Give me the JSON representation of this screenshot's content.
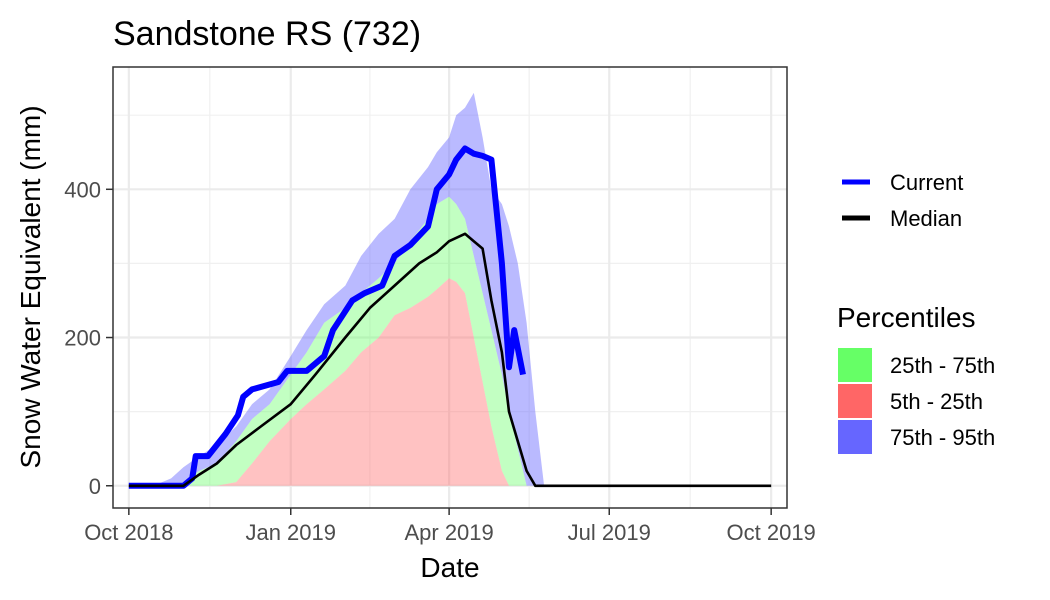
{
  "chart_data": {
    "type": "area",
    "title": "Sandstone RS (732)",
    "xlabel": "Date",
    "ylabel": "Snow Water Equivalent (mm)",
    "x_range": [
      "2018-09-22",
      "2019-10-10"
    ],
    "ylim": [
      -30,
      565
    ],
    "x_ticks": [
      {
        "date": "2018-10-01",
        "label": "Oct 2018"
      },
      {
        "date": "2019-01-01",
        "label": "Jan 2019"
      },
      {
        "date": "2019-04-01",
        "label": "Apr 2019"
      },
      {
        "date": "2019-07-01",
        "label": "Jul 2019"
      },
      {
        "date": "2019-10-01",
        "label": "Oct 2019"
      }
    ],
    "y_ticks": [
      0,
      200,
      400
    ],
    "grid": true,
    "legend_position": "right",
    "colors": {
      "current": "#0000ff",
      "median": "#000000",
      "p25_75": "#66ff66",
      "p5_25": "#ff6666",
      "p75_95": "#6666ff"
    },
    "legend": {
      "lines": [
        {
          "label": "Current",
          "color": "#0000ff"
        },
        {
          "label": "Median",
          "color": "#000000"
        }
      ],
      "fills_title": "Percentiles",
      "fills": [
        {
          "label": "25th - 75th",
          "color": "#66ff66"
        },
        {
          "label": "5th - 25th",
          "color": "#ff6666"
        },
        {
          "label": "75th - 95th",
          "color": "#6666ff"
        }
      ]
    },
    "bands": {
      "x": [
        "2018-10-01",
        "2018-10-15",
        "2018-10-25",
        "2018-11-01",
        "2018-11-10",
        "2018-11-20",
        "2018-12-01",
        "2018-12-10",
        "2018-12-20",
        "2019-01-01",
        "2019-01-10",
        "2019-01-20",
        "2019-02-01",
        "2019-02-10",
        "2019-02-20",
        "2019-03-01",
        "2019-03-10",
        "2019-03-20",
        "2019-03-25",
        "2019-04-01",
        "2019-04-05",
        "2019-04-10",
        "2019-04-15",
        "2019-04-20",
        "2019-04-25",
        "2019-05-01",
        "2019-05-05",
        "2019-05-10",
        "2019-05-15",
        "2019-05-20",
        "2019-05-25",
        "2019-05-31",
        "2019-06-05"
      ],
      "p5": [
        0,
        0,
        0,
        0,
        0,
        0,
        0,
        0,
        0,
        0,
        0,
        0,
        0,
        0,
        0,
        0,
        0,
        0,
        0,
        0,
        0,
        0,
        0,
        0,
        0,
        0,
        0,
        0,
        0,
        0,
        0,
        0,
        0
      ],
      "p25": [
        0,
        0,
        0,
        0,
        0,
        0,
        5,
        30,
        60,
        90,
        110,
        130,
        155,
        180,
        200,
        230,
        240,
        255,
        265,
        280,
        275,
        260,
        200,
        140,
        80,
        20,
        0,
        0,
        0,
        0,
        0,
        0,
        0
      ],
      "p75": [
        0,
        0,
        0,
        5,
        20,
        30,
        60,
        90,
        110,
        150,
        180,
        220,
        240,
        260,
        280,
        300,
        330,
        360,
        380,
        390,
        380,
        360,
        310,
        260,
        210,
        150,
        100,
        50,
        0,
        0,
        0,
        0,
        0
      ],
      "p95": [
        0,
        0,
        10,
        25,
        40,
        55,
        80,
        110,
        130,
        175,
        210,
        245,
        270,
        310,
        340,
        360,
        400,
        430,
        450,
        470,
        500,
        510,
        530,
        470,
        400,
        380,
        350,
        300,
        220,
        100,
        0,
        0,
        0
      ]
    },
    "series": [
      {
        "name": "Current",
        "x": [
          "2018-10-01",
          "2018-11-01",
          "2018-11-06",
          "2018-11-08",
          "2018-11-15",
          "2018-11-25",
          "2018-12-02",
          "2018-12-05",
          "2018-12-10",
          "2018-12-25",
          "2018-12-30",
          "2019-01-10",
          "2019-01-20",
          "2019-01-25",
          "2019-02-05",
          "2019-02-12",
          "2019-02-22",
          "2019-03-01",
          "2019-03-10",
          "2019-03-20",
          "2019-03-25",
          "2019-04-01",
          "2019-04-05",
          "2019-04-10",
          "2019-04-15",
          "2019-04-20",
          "2019-04-25",
          "2019-05-01",
          "2019-05-05",
          "2019-05-08",
          "2019-05-13"
        ],
        "values": [
          0,
          0,
          10,
          40,
          40,
          70,
          95,
          120,
          130,
          140,
          155,
          155,
          175,
          210,
          250,
          260,
          270,
          310,
          325,
          350,
          400,
          420,
          440,
          455,
          448,
          445,
          440,
          300,
          160,
          210,
          150
        ]
      },
      {
        "name": "Median",
        "x": [
          "2018-10-01",
          "2018-11-01",
          "2018-11-10",
          "2018-11-20",
          "2018-12-01",
          "2018-12-15",
          "2019-01-01",
          "2019-01-15",
          "2019-02-01",
          "2019-02-15",
          "2019-03-01",
          "2019-03-15",
          "2019-03-25",
          "2019-04-01",
          "2019-04-10",
          "2019-04-15",
          "2019-04-20",
          "2019-04-25",
          "2019-05-01",
          "2019-05-05",
          "2019-05-10",
          "2019-05-15",
          "2019-05-20",
          "2019-10-01"
        ],
        "values": [
          0,
          0,
          15,
          30,
          55,
          80,
          110,
          150,
          200,
          240,
          270,
          300,
          315,
          330,
          340,
          330,
          320,
          250,
          180,
          100,
          60,
          20,
          0,
          0
        ]
      }
    ]
  }
}
